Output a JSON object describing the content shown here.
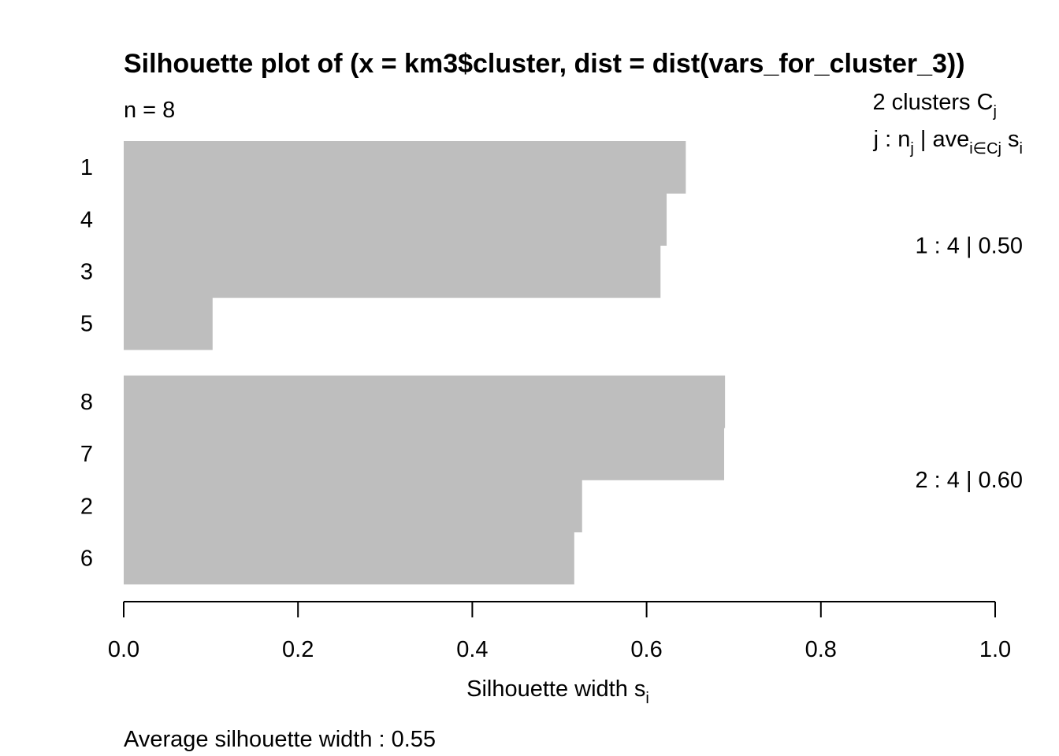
{
  "chart_data": {
    "type": "bar",
    "orientation": "horizontal",
    "title": "Silhouette plot of (x = km3$cluster, dist = dist(vars_for_cluster_3))",
    "n_label": "n = 8",
    "legend": {
      "clusters_prefix": "2  clusters  C",
      "clusters_sub": "j",
      "header_prefix": "j :  n",
      "header_sub_j": "j",
      "header_mid": " | ave",
      "header_sub_set": "i∈Cj",
      "header_s": "  s",
      "header_sub_i": "i"
    },
    "clusters": [
      {
        "summary": "1 :   4  |  0.50",
        "items": [
          {
            "label": "1",
            "value": 0.645
          },
          {
            "label": "4",
            "value": 0.623
          },
          {
            "label": "3",
            "value": 0.616
          },
          {
            "label": "5",
            "value": 0.102
          }
        ]
      },
      {
        "summary": "2 :   4  |  0.60",
        "items": [
          {
            "label": "8",
            "value": 0.69
          },
          {
            "label": "7",
            "value": 0.689
          },
          {
            "label": "2",
            "value": 0.526
          },
          {
            "label": "6",
            "value": 0.517
          }
        ]
      }
    ],
    "xlim": [
      0,
      1
    ],
    "x_ticks": [
      "0.0",
      "0.2",
      "0.4",
      "0.6",
      "0.8",
      "1.0"
    ],
    "xlabel": "Silhouette width s",
    "xlabel_sub": "i",
    "footer": "Average silhouette width :  0.55",
    "bar_color": "#bebebe"
  }
}
